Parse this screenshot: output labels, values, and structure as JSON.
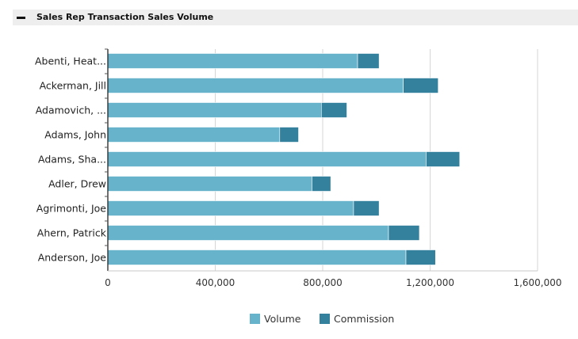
{
  "header": {
    "title": "Sales Rep Transaction Sales Volume"
  },
  "chart_data": {
    "type": "bar",
    "orientation": "horizontal",
    "stacked": true,
    "title": "",
    "xlabel": "",
    "ylabel": "",
    "categories": [
      "Abenti, Heat...",
      "Ackerman, Jill",
      "Adamovich, ...",
      "Adams, John",
      "Adams, Sha...",
      "Adler, Drew",
      "Agrimonti, Joe",
      "Ahern, Patrick",
      "Anderson, Joe"
    ],
    "series": [
      {
        "name": "Volume",
        "color": "#68b3cc",
        "values": [
          930000,
          1100000,
          795000,
          640000,
          1185000,
          760000,
          915000,
          1045000,
          1110000
        ]
      },
      {
        "name": "Commission",
        "color": "#34819e",
        "values": [
          80000,
          130000,
          95000,
          70000,
          125000,
          70000,
          95000,
          115000,
          110000
        ]
      }
    ],
    "xlim": [
      0,
      1600000
    ],
    "xticks": [
      "0",
      "400,000",
      "800,000",
      "1,200,000",
      "1,600,000"
    ],
    "grid": true,
    "legend": "bottom"
  }
}
